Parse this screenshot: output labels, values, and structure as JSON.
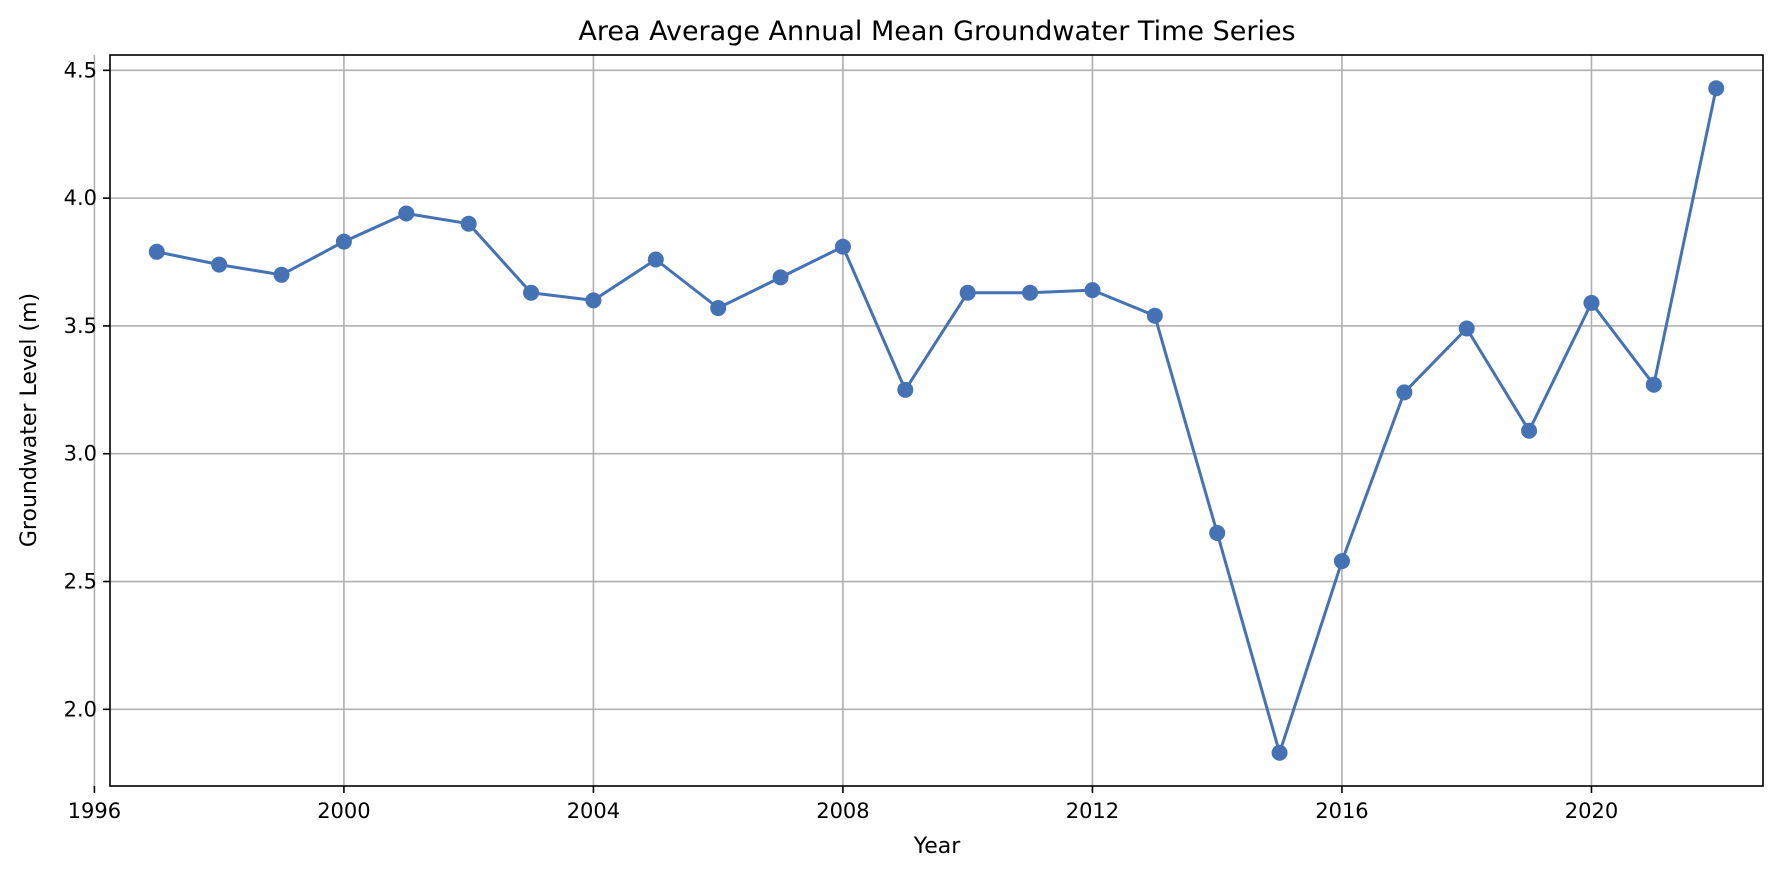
{
  "chart_data": {
    "type": "line",
    "title": "Area Average Annual Mean Groundwater Time Series",
    "xlabel": "Year",
    "ylabel": "Groundwater Level (m)",
    "x": [
      1997,
      1998,
      1999,
      2000,
      2001,
      2002,
      2003,
      2004,
      2005,
      2006,
      2007,
      2008,
      2009,
      2010,
      2011,
      2012,
      2013,
      2014,
      2015,
      2016,
      2017,
      2018,
      2019,
      2020,
      2021,
      2022
    ],
    "series": [
      {
        "values": [
          3.79,
          3.74,
          3.7,
          3.83,
          3.94,
          3.9,
          3.63,
          3.6,
          3.76,
          3.57,
          3.69,
          3.81,
          3.25,
          3.63,
          3.63,
          3.64,
          3.54,
          2.69,
          1.83,
          2.58,
          3.24,
          3.49,
          3.09,
          3.59,
          3.27,
          4.43
        ],
        "color": "#4472b4",
        "marker": "circle"
      }
    ],
    "xlim": [
      1996.25,
      2022.75
    ],
    "ylim": [
      1.7,
      4.56
    ],
    "xticks": [
      1996,
      2000,
      2004,
      2008,
      2012,
      2016,
      2020
    ],
    "yticks": [
      2.0,
      2.5,
      3.0,
      3.5,
      4.0,
      4.5
    ],
    "xtick_labels": [
      "1996",
      "2000",
      "2004",
      "2008",
      "2012",
      "2016",
      "2020"
    ],
    "ytick_labels": [
      "2.0",
      "2.5",
      "3.0",
      "3.5",
      "4.0",
      "4.5"
    ],
    "grid": true,
    "legend": "none"
  }
}
